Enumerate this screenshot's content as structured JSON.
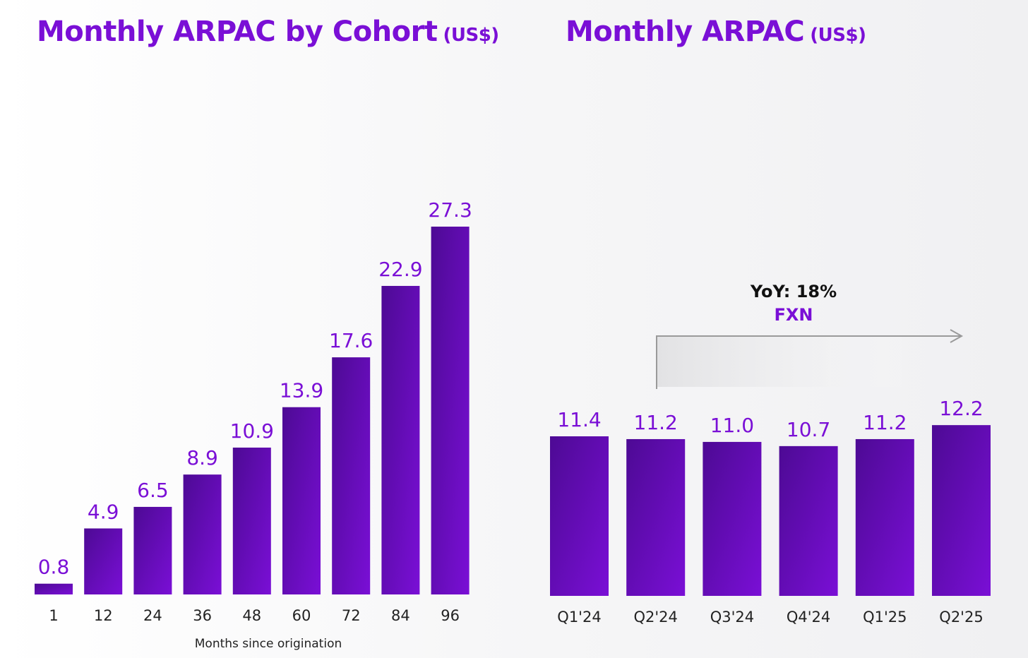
{
  "chart_data": [
    {
      "type": "bar",
      "title": "Monthly ARPAC by Cohort",
      "unit": "(US$)",
      "xlabel": "Months since origination",
      "ylabel": "",
      "categories": [
        "1",
        "12",
        "24",
        "36",
        "48",
        "60",
        "72",
        "84",
        "96"
      ],
      "values": [
        0.8,
        4.9,
        6.5,
        8.9,
        10.9,
        13.9,
        17.6,
        22.9,
        27.3
      ],
      "value_labels": [
        "0.8",
        "4.9",
        "6.5",
        "8.9",
        "10.9",
        "13.9",
        "17.6",
        "22.9",
        "27.3"
      ],
      "ylim": [
        0,
        28
      ],
      "grid": false
    },
    {
      "type": "bar",
      "title": "Monthly ARPAC",
      "unit": "(US$)",
      "xlabel": "",
      "ylabel": "",
      "categories": [
        "Q1'24",
        "Q2'24",
        "Q3'24",
        "Q4'24",
        "Q1'25",
        "Q2'25"
      ],
      "values": [
        11.4,
        11.2,
        11.0,
        10.7,
        11.2,
        12.2
      ],
      "value_labels": [
        "11.4",
        "11.2",
        "11.0",
        "10.7",
        "11.2",
        "12.2"
      ],
      "ylim": [
        0,
        28
      ],
      "grid": false,
      "annotation": {
        "line1": "YoY: 18%",
        "line2": "FXN",
        "from": "Q2'24",
        "to": "Q2'25"
      }
    }
  ],
  "colors": {
    "bar_dark": "#4d0a94",
    "bar_light": "#7a0fd6",
    "text_accent": "#7a0fd6"
  }
}
